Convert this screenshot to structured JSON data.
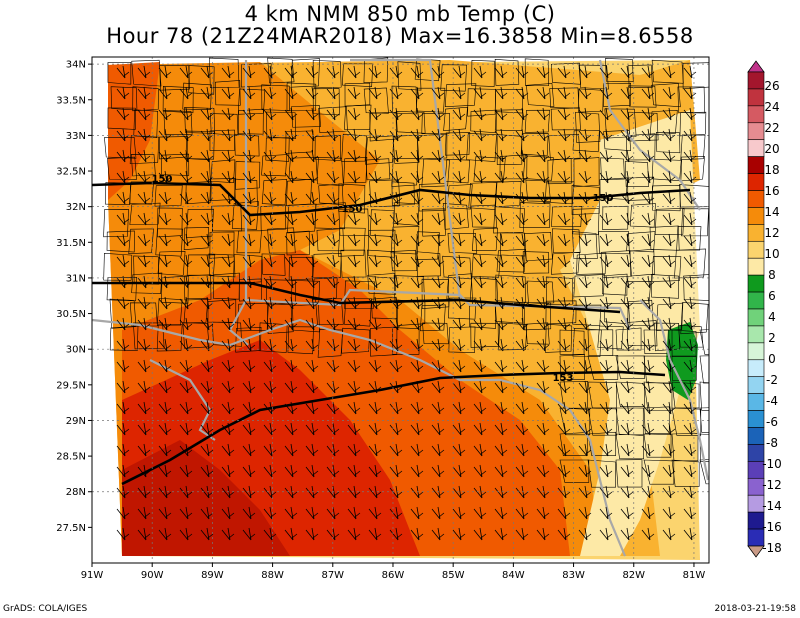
{
  "title": {
    "line1": "4 km NMM 850 mb Temp (C)",
    "line2": "Hour 78 (21Z24MAR2018) Max=16.3858 Min=8.6558"
  },
  "map": {
    "lon_range": [
      -91,
      -80.75
    ],
    "lat_range": [
      27,
      34.1
    ],
    "lon_ticks": [
      "91W",
      "90W",
      "89W",
      "88W",
      "87W",
      "86W",
      "85W",
      "84W",
      "83W",
      "82W",
      "81W"
    ],
    "lat_ticks": [
      "27.5N",
      "28N",
      "28.5N",
      "29N",
      "29.5N",
      "30N",
      "30.5N",
      "31N",
      "31.5N",
      "32N",
      "32.5N",
      "33N",
      "33.5N",
      "34N"
    ],
    "contours": [
      {
        "label": "150",
        "color": "#000000"
      },
      {
        "label": "150",
        "color": "#000000"
      },
      {
        "label": "150",
        "color": "#000000"
      },
      {
        "label": "153",
        "color": "#000000"
      }
    ],
    "land_outline_color": "#a8a8a8",
    "county_line_color": "#000000"
  },
  "colorbar": {
    "labels": [
      "26",
      "24",
      "22",
      "20",
      "18",
      "16",
      "14",
      "12",
      "10",
      "8",
      "6",
      "4",
      "2",
      "0",
      "-2",
      "-4",
      "-6",
      "-8",
      "-10",
      "-12",
      "-14",
      "-16",
      "-18"
    ],
    "colors": [
      "#a3162d",
      "#c0333e",
      "#d55a62",
      "#e68c91",
      "#f7c9cc",
      "#a80000",
      "#dd2500",
      "#f05a00",
      "#f58b0a",
      "#f9b230",
      "#fbd46e",
      "#fde9a6",
      "#0f9a1e",
      "#31b54a",
      "#70d27a",
      "#a8e7ac",
      "#d7f5d8",
      "#c7ecfb",
      "#93d4f1",
      "#5ab7e6",
      "#2a90d2",
      "#1b63b8",
      "#2e44a7",
      "#5b3fb7",
      "#8a62cf",
      "#b59be2",
      "#1e1a8f",
      "#2a2cb5"
    ],
    "ends": {
      "top": "#c0338a",
      "bottom": "#c99a86"
    }
  },
  "credits": {
    "left": "GrADS: COLA/IGES",
    "right": "2018-03-21-19:58"
  }
}
